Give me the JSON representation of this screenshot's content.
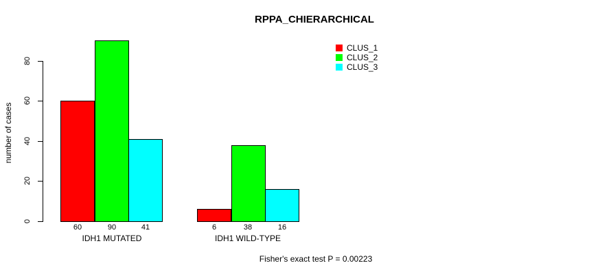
{
  "chart_data": {
    "type": "bar",
    "title": "RPPA_CHIERARCHICAL",
    "ylabel": "number of cases",
    "xlabel": "",
    "categories": [
      "IDH1 MUTATED",
      "IDH1 WILD-TYPE"
    ],
    "series": [
      {
        "name": "CLUS_1",
        "color": "#FF0000",
        "values": [
          60,
          6
        ]
      },
      {
        "name": "CLUS_2",
        "color": "#00FF00",
        "values": [
          90,
          38
        ]
      },
      {
        "name": "CLUS_3",
        "color": "#00FFFF",
        "values": [
          41,
          16
        ]
      }
    ],
    "yticks": [
      0,
      20,
      40,
      60,
      80
    ],
    "ylim": [
      0,
      90
    ],
    "bar_value_labels_shown": true,
    "grid": false,
    "legend_position": "top-right",
    "annotation": "Fisher's exact test P = 0.00223"
  },
  "colors": {
    "axis": "#000000",
    "text": "#000000",
    "background": "#FFFFFF"
  }
}
